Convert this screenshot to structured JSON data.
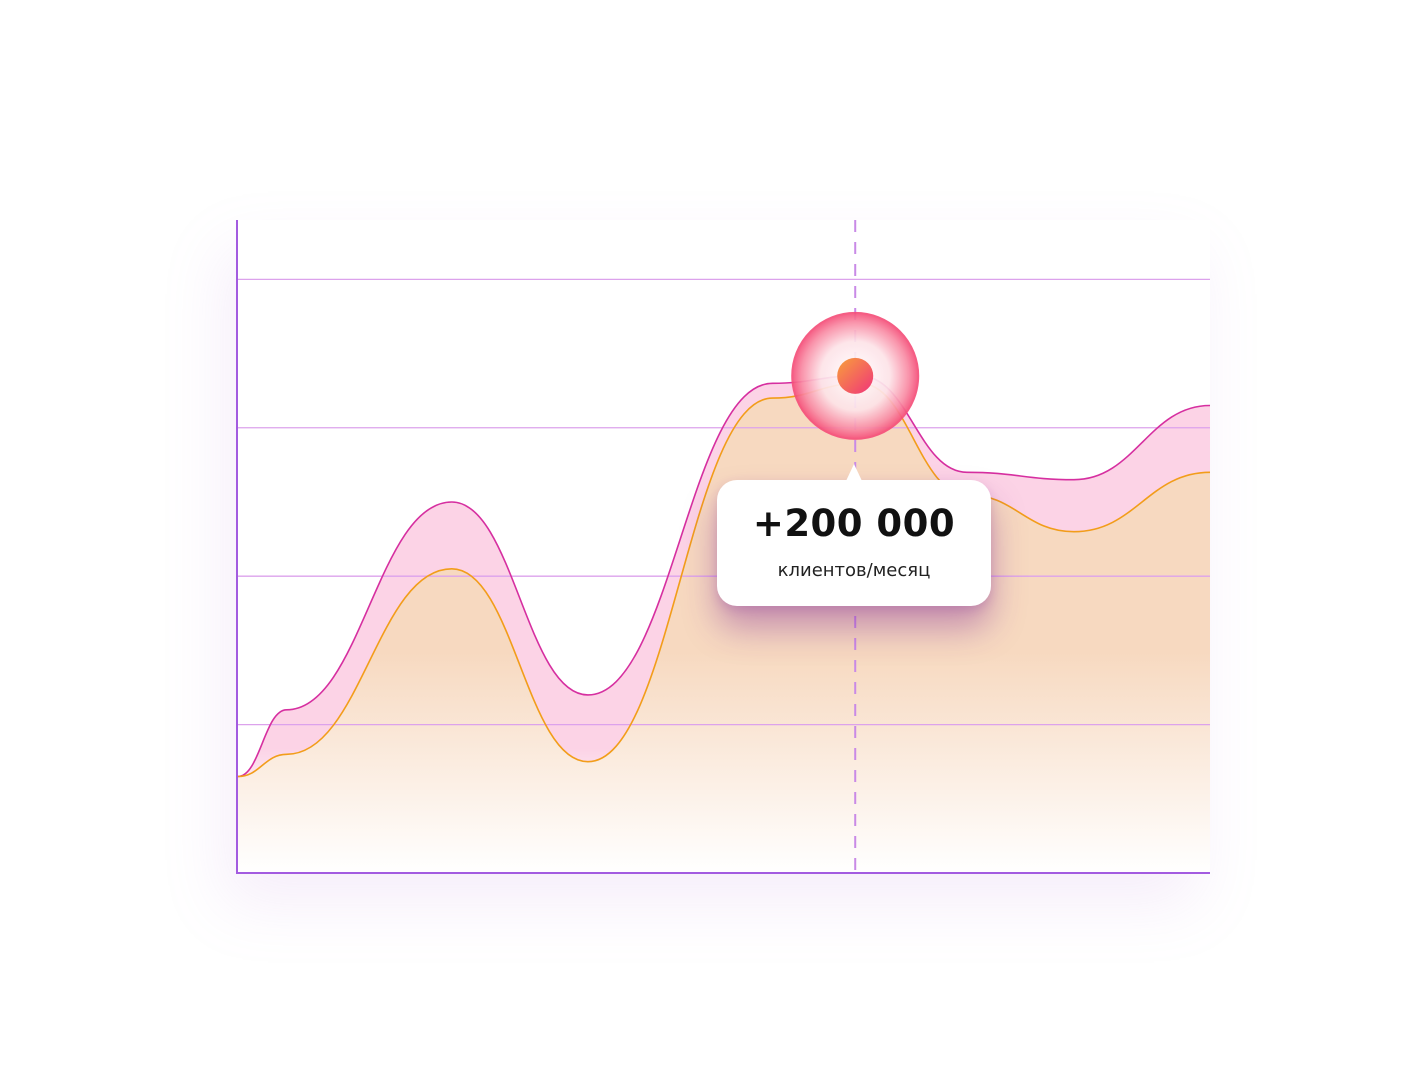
{
  "chart_data": {
    "type": "area",
    "grid": true,
    "series": [
      {
        "color": "#d62fa0",
        "fill": "#fcd3e6",
        "values": [
          {
            "x": 0,
            "y": 0.65
          },
          {
            "x": 0.05,
            "y": 1.1
          },
          {
            "x": 0.22,
            "y": 2.5
          },
          {
            "x": 0.36,
            "y": 1.2
          },
          {
            "x": 0.55,
            "y": 3.3
          },
          {
            "x": 0.64,
            "y": 3.35
          },
          {
            "x": 0.75,
            "y": 2.7
          },
          {
            "x": 0.86,
            "y": 2.65
          },
          {
            "x": 1.0,
            "y": 3.15
          }
        ]
      },
      {
        "color": "#f29d1a",
        "fill": "#f7d9c0",
        "values": [
          {
            "x": 0,
            "y": 0.65
          },
          {
            "x": 0.05,
            "y": 0.8
          },
          {
            "x": 0.22,
            "y": 2.05
          },
          {
            "x": 0.36,
            "y": 0.75
          },
          {
            "x": 0.55,
            "y": 3.2
          },
          {
            "x": 0.64,
            "y": 3.3
          },
          {
            "x": 0.75,
            "y": 2.55
          },
          {
            "x": 0.86,
            "y": 2.3
          },
          {
            "x": 1.0,
            "y": 2.7
          }
        ]
      }
    ],
    "xlim": [
      0,
      1
    ],
    "ylim": [
      0,
      4.4
    ],
    "gridlines_y": [
      1,
      2,
      3,
      4
    ],
    "highlight": {
      "x": 0.635,
      "y": 3.35,
      "label": "+200 000",
      "sublabel": "клиентов/месяц"
    }
  },
  "colors": {
    "axis": "#a35be0",
    "grid": "#dca2ec",
    "dashed_line": "#c98ae6",
    "marker_outer": "#f5507a",
    "marker_inner": "#f4763c"
  }
}
